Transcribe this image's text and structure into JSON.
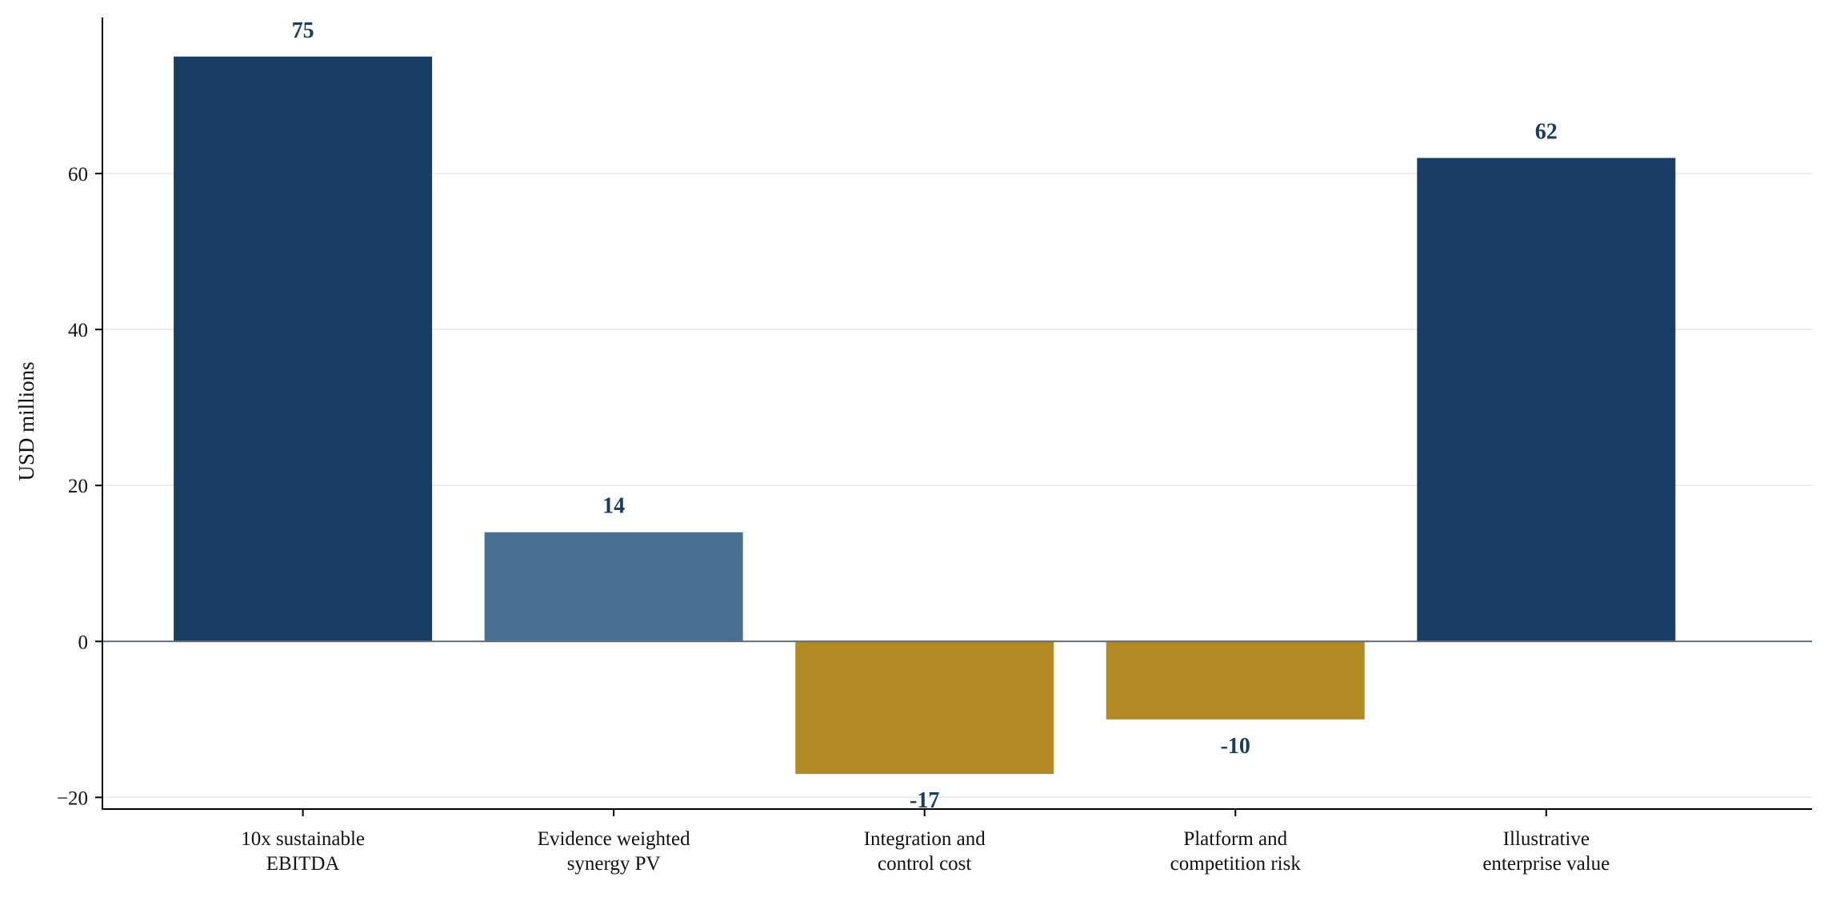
{
  "chart_data": {
    "type": "bar",
    "title": "",
    "xlabel": "",
    "ylabel": "USD millions",
    "ylim": [
      -21.5,
      80
    ],
    "yticks": [
      -20,
      0,
      20,
      40,
      60
    ],
    "ytick_labels": [
      "−20",
      "0",
      "20",
      "40",
      "60"
    ],
    "grid": true,
    "legend": "none",
    "categories": [
      [
        "10x sustainable",
        "EBITDA"
      ],
      [
        "Evidence weighted",
        "synergy PV"
      ],
      [
        "Integration and",
        "control cost"
      ],
      [
        "Platform and",
        "competition risk"
      ],
      [
        "Illustrative",
        "enterprise value"
      ]
    ],
    "values": [
      75,
      14,
      -17,
      -10,
      62
    ],
    "data_labels": [
      "75",
      "14",
      "-17",
      "-10",
      "62"
    ],
    "bar_colors": [
      "#1a3d66",
      "#4a6f95",
      "#b38a22",
      "#b38a22",
      "#1a3d66"
    ],
    "label_color": "#1a3d66",
    "axis_color": "#000000",
    "zero_line_color": "#5f6b78",
    "grid_color": "#e8e8e8",
    "text_color": "#111111"
  }
}
